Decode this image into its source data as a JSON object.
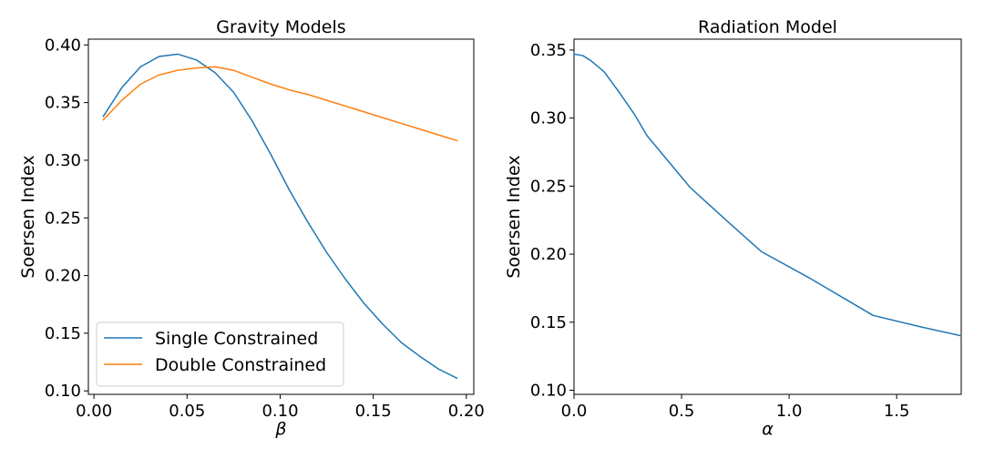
{
  "chart_data": [
    {
      "type": "line",
      "title": "Gravity Models",
      "xlabel": "β",
      "ylabel": "Soersen Index",
      "xlim": [
        -0.003,
        0.204
      ],
      "ylim": [
        0.097,
        0.405
      ],
      "xticks": [
        0.0,
        0.05,
        0.1,
        0.15,
        0.2
      ],
      "xtick_labels": [
        "0.00",
        "0.05",
        "0.10",
        "0.15",
        "0.20"
      ],
      "yticks": [
        0.1,
        0.15,
        0.2,
        0.25,
        0.3,
        0.35,
        0.4
      ],
      "ytick_labels": [
        "0.10",
        "0.15",
        "0.20",
        "0.25",
        "0.30",
        "0.35",
        "0.40"
      ],
      "grid": false,
      "legend_position": "lower-left",
      "series": [
        {
          "name": "Single Constrained",
          "color": "#1f77b4",
          "x": [
            0.005,
            0.015,
            0.025,
            0.035,
            0.045,
            0.055,
            0.065,
            0.075,
            0.085,
            0.095,
            0.105,
            0.115,
            0.125,
            0.135,
            0.145,
            0.155,
            0.165,
            0.175,
            0.185,
            0.195
          ],
          "y": [
            0.338,
            0.363,
            0.381,
            0.39,
            0.392,
            0.387,
            0.376,
            0.359,
            0.334,
            0.305,
            0.274,
            0.246,
            0.22,
            0.197,
            0.176,
            0.158,
            0.142,
            0.13,
            0.119,
            0.111
          ]
        },
        {
          "name": "Double Constrained",
          "color": "#ff7f0e",
          "x": [
            0.005,
            0.015,
            0.025,
            0.035,
            0.045,
            0.055,
            0.065,
            0.075,
            0.085,
            0.095,
            0.105,
            0.115,
            0.125,
            0.135,
            0.145,
            0.155,
            0.165,
            0.175,
            0.185,
            0.195
          ],
          "y": [
            0.335,
            0.352,
            0.366,
            0.374,
            0.378,
            0.38,
            0.381,
            0.378,
            0.372,
            0.366,
            0.361,
            0.357,
            0.352,
            0.347,
            0.342,
            0.337,
            0.332,
            0.327,
            0.322,
            0.317
          ]
        }
      ]
    },
    {
      "type": "line",
      "title": "Radiation Model",
      "xlabel": "α",
      "ylabel": "Soersen Index",
      "xlim": [
        0.0,
        1.8
      ],
      "ylim": [
        0.097,
        0.358
      ],
      "xticks": [
        0.0,
        0.5,
        1.0,
        1.5
      ],
      "xtick_labels": [
        "0.0",
        "0.5",
        "1.0",
        "1.5"
      ],
      "yticks": [
        0.1,
        0.15,
        0.2,
        0.25,
        0.3,
        0.35
      ],
      "ytick_labels": [
        "0.10",
        "0.15",
        "0.20",
        "0.25",
        "0.30",
        "0.35"
      ],
      "grid": false,
      "series": [
        {
          "color": "#1f77b4",
          "x": [
            0.0,
            0.04,
            0.08,
            0.14,
            0.21,
            0.28,
            0.34,
            0.44,
            0.54,
            0.7,
            0.87,
            1.1,
            1.39,
            1.6,
            1.8
          ],
          "y": [
            0.347,
            0.346,
            0.342,
            0.334,
            0.319,
            0.303,
            0.287,
            0.268,
            0.249,
            0.226,
            0.202,
            0.182,
            0.155,
            0.147,
            0.14
          ]
        }
      ]
    }
  ]
}
